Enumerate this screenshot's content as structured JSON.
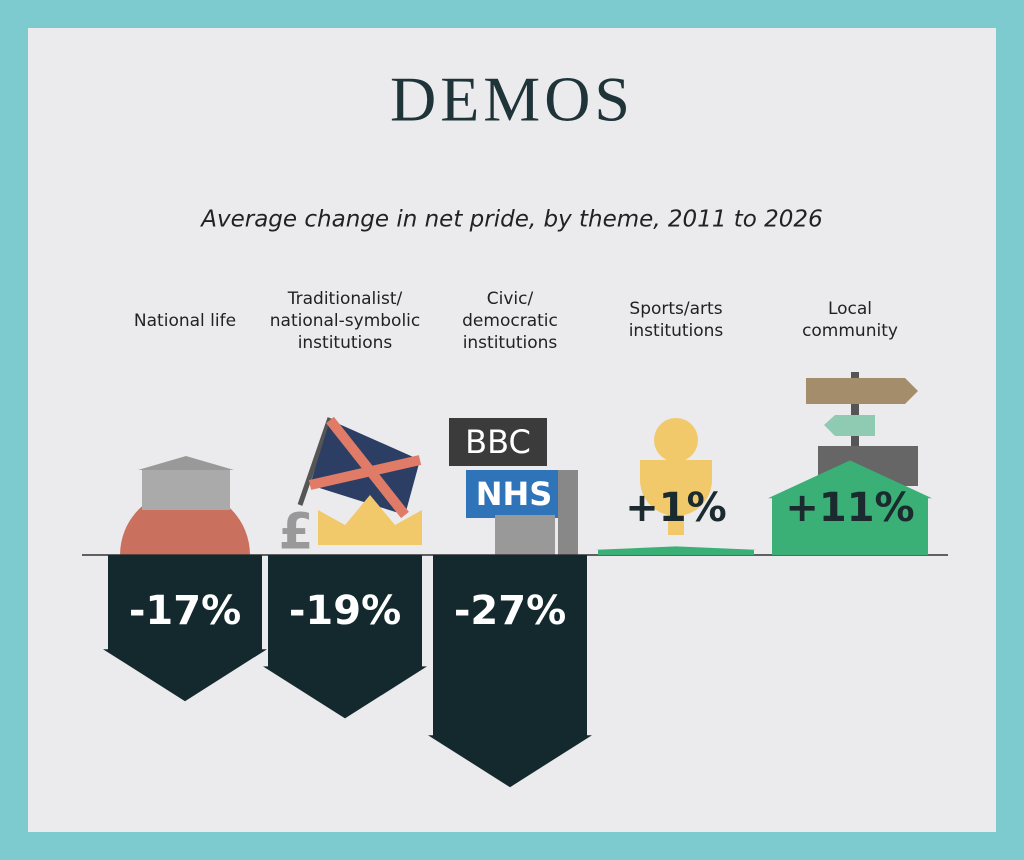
{
  "chart_data": {
    "type": "bar",
    "logo": "DEMOS",
    "title": "Average change in net pride, by theme, 2011 to 2026",
    "categories": [
      "National life",
      "Traditionalist/\nnational-symbolic\ninstitutions",
      "Civic/\ndemocratic\ninstitutions",
      "Sports/arts\ninstitutions",
      "Local\ncommunity"
    ],
    "values": [
      -17,
      -19,
      -27,
      1,
      11
    ],
    "value_labels": [
      "-17%",
      "-19%",
      "-27%",
      "+1%",
      "+11%"
    ],
    "negative_color": "#14292e",
    "positive_color": "#3aaf76",
    "annotations": [
      "BBC",
      "NHS"
    ]
  }
}
